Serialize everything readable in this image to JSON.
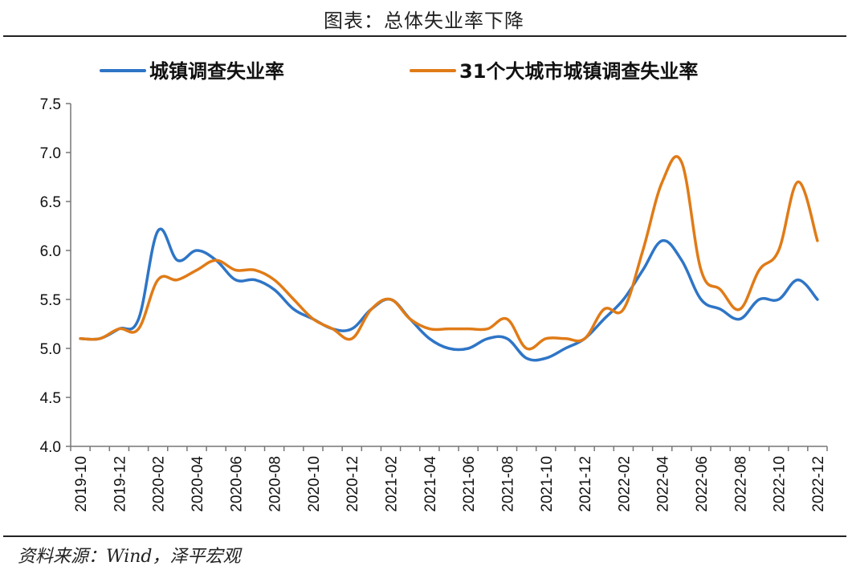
{
  "page_title": "图表：总体失业率下降",
  "source": "资料来源：Wind，泽平宏观",
  "chart_data": {
    "type": "line",
    "title": "",
    "xlabel": "",
    "ylabel": "",
    "ylim": [
      4.0,
      7.5
    ],
    "yticks": [
      "4.0",
      "4.5",
      "5.0",
      "5.5",
      "6.0",
      "6.5",
      "7.0",
      "7.5"
    ],
    "xtick_labels": [
      "2019-10",
      "2019-12",
      "2020-02",
      "2020-04",
      "2020-06",
      "2020-08",
      "2020-10",
      "2020-12",
      "2021-02",
      "2021-04",
      "2021-06",
      "2021-08",
      "2021-10",
      "2021-12",
      "2022-02",
      "2022-04",
      "2022-06",
      "2022-08",
      "2022-10",
      "2022-12"
    ],
    "x": [
      "2019-10",
      "2019-11",
      "2019-12",
      "2020-01",
      "2020-02",
      "2020-03",
      "2020-04",
      "2020-05",
      "2020-06",
      "2020-07",
      "2020-08",
      "2020-09",
      "2020-10",
      "2020-11",
      "2020-12",
      "2021-01",
      "2021-02",
      "2021-03",
      "2021-04",
      "2021-05",
      "2021-06",
      "2021-07",
      "2021-08",
      "2021-09",
      "2021-10",
      "2021-11",
      "2021-12",
      "2022-01",
      "2022-02",
      "2022-03",
      "2022-04",
      "2022-05",
      "2022-06",
      "2022-07",
      "2022-08",
      "2022-09",
      "2022-10",
      "2022-11",
      "2022-12"
    ],
    "series": [
      {
        "name": "城镇调查失业率",
        "color": "#2e75c6",
        "values": [
          5.1,
          5.1,
          5.2,
          5.3,
          6.2,
          5.9,
          6.0,
          5.9,
          5.7,
          5.7,
          5.6,
          5.4,
          5.3,
          5.2,
          5.2,
          5.4,
          5.5,
          5.3,
          5.1,
          5.0,
          5.0,
          5.1,
          5.1,
          4.9,
          4.9,
          5.0,
          5.1,
          5.3,
          5.5,
          5.8,
          6.1,
          5.9,
          5.5,
          5.4,
          5.3,
          5.5,
          5.5,
          5.7,
          5.5
        ]
      },
      {
        "name": "31个大城市城镇调查失业率",
        "color": "#e07b17",
        "values": [
          5.1,
          5.1,
          5.2,
          5.2,
          5.7,
          5.7,
          5.8,
          5.9,
          5.8,
          5.8,
          5.7,
          5.5,
          5.3,
          5.2,
          5.1,
          5.4,
          5.5,
          5.3,
          5.2,
          5.2,
          5.2,
          5.2,
          5.3,
          5.0,
          5.1,
          5.1,
          5.1,
          5.4,
          5.4,
          6.0,
          6.7,
          6.9,
          5.8,
          5.6,
          5.4,
          5.8,
          6.0,
          6.7,
          6.1
        ]
      }
    ],
    "legend_position": "top",
    "grid": false
  }
}
